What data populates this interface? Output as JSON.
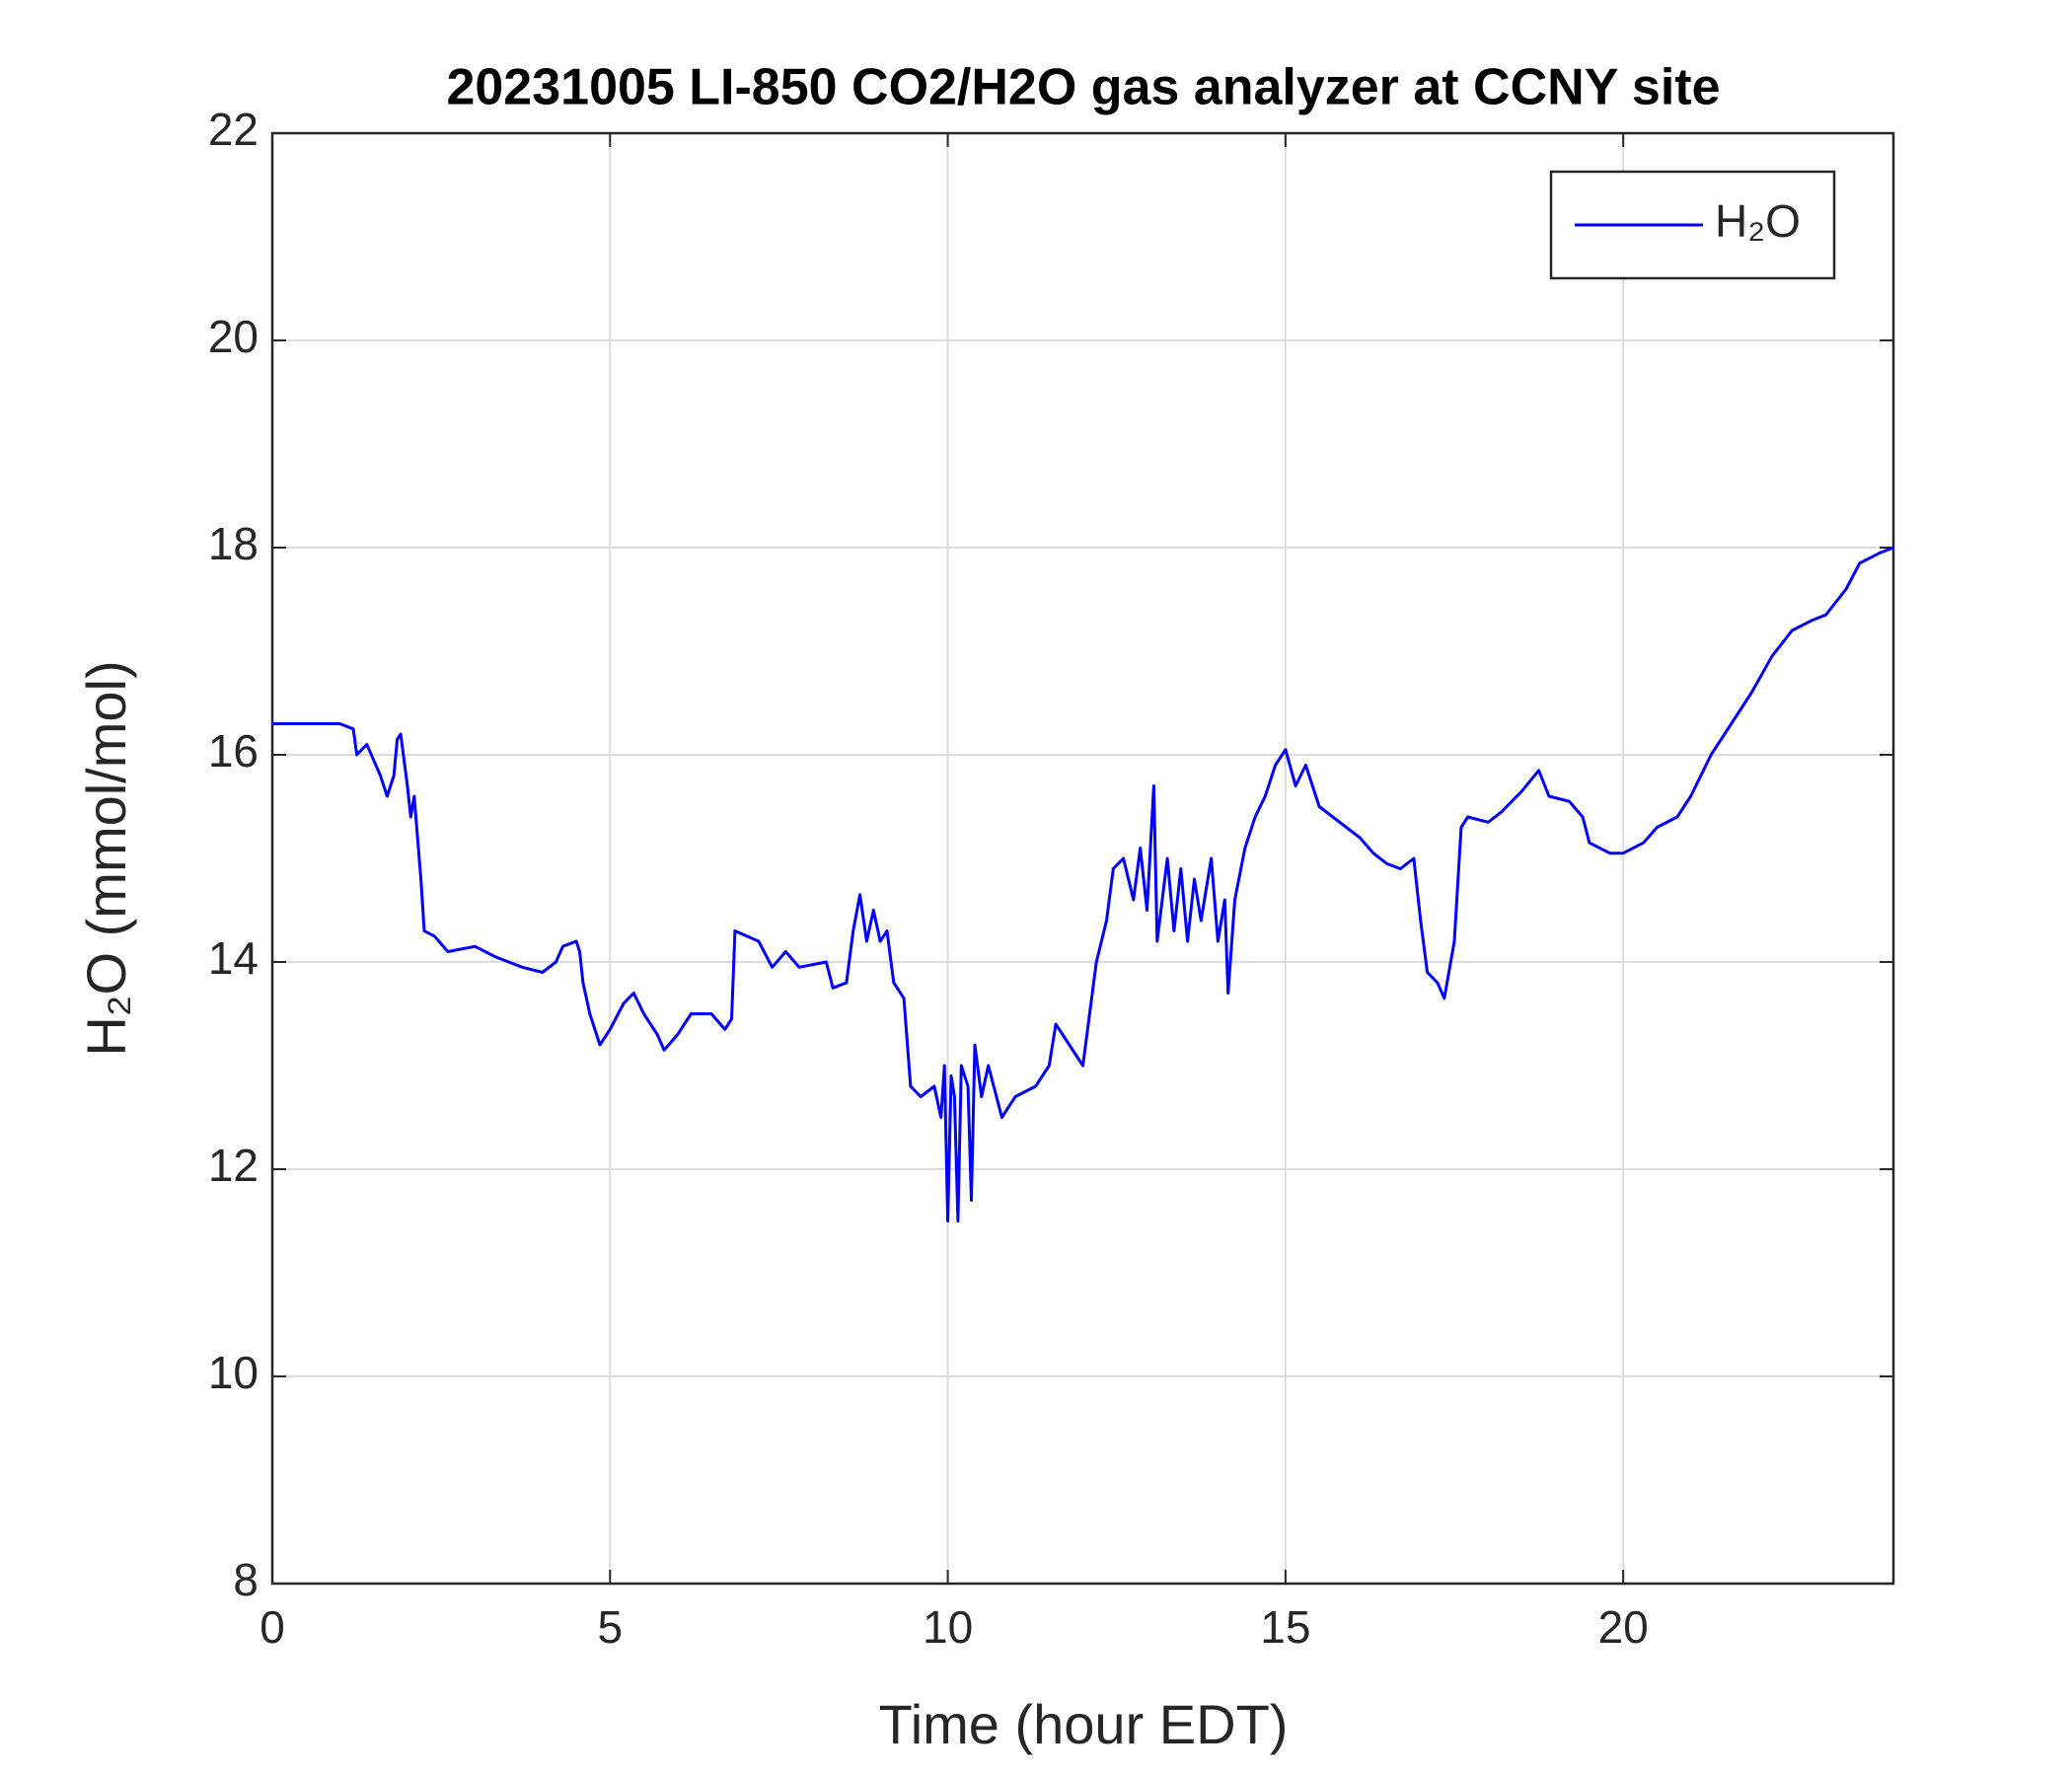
{
  "chart_data": {
    "type": "line",
    "title": "20231005 LI-850 CO2/H2O gas analyzer at CCNY site",
    "xlabel": "Time (hour EDT)",
    "ylabel": "H₂O (mmol/mol)",
    "xlim": [
      0,
      24
    ],
    "xticks": [
      0,
      5,
      10,
      15,
      20
    ],
    "ylim": [
      8,
      22
    ],
    "yticks": [
      8,
      10,
      12,
      14,
      16,
      18,
      20,
      22
    ],
    "grid": true,
    "legend": "northeast",
    "x": [
      0,
      0.5,
      1,
      1.2,
      1.25,
      1.4,
      1.6,
      1.7,
      1.8,
      1.85,
      1.9,
      2.0,
      2.05,
      2.1,
      2.2,
      2.25,
      2.4,
      2.6,
      3.0,
      3.3,
      3.5,
      3.7,
      4.0,
      4.2,
      4.3,
      4.5,
      4.55,
      4.6,
      4.7,
      4.85,
      5.0,
      5.2,
      5.35,
      5.5,
      5.7,
      5.8,
      6.0,
      6.2,
      6.5,
      6.7,
      6.8,
      6.85,
      7.2,
      7.4,
      7.6,
      7.8,
      8.2,
      8.3,
      8.5,
      8.6,
      8.7,
      8.8,
      8.9,
      9.0,
      9.1,
      9.2,
      9.35,
      9.45,
      9.6,
      9.8,
      9.9,
      9.95,
      10.0,
      10.05,
      10.1,
      10.15,
      10.2,
      10.3,
      10.35,
      10.4,
      10.5,
      10.6,
      10.8,
      11.0,
      11.3,
      11.5,
      11.6,
      11.8,
      12.0,
      12.2,
      12.35,
      12.45,
      12.6,
      12.75,
      12.85,
      12.95,
      13.05,
      13.1,
      13.25,
      13.35,
      13.45,
      13.55,
      13.65,
      13.75,
      13.9,
      14.0,
      14.1,
      14.15,
      14.25,
      14.4,
      14.55,
      14.7,
      14.85,
      15.0,
      15.15,
      15.3,
      15.5,
      15.7,
      15.9,
      16.1,
      16.3,
      16.5,
      16.7,
      16.9,
      17.0,
      17.1,
      17.25,
      17.35,
      17.5,
      17.6,
      17.7,
      18.0,
      18.2,
      18.5,
      18.75,
      18.9,
      19.2,
      19.4,
      19.5,
      19.8,
      20.0,
      20.3,
      20.5,
      20.8,
      21.0,
      21.3,
      21.6,
      21.9,
      22.2,
      22.5,
      22.8,
      23.0,
      23.3,
      23.5,
      23.8,
      24.0
    ],
    "series": [
      {
        "name": "H₂O",
        "color": "#0000ff",
        "values": [
          16.3,
          16.3,
          16.3,
          16.25,
          16.0,
          16.1,
          15.8,
          15.6,
          15.8,
          16.15,
          16.2,
          15.7,
          15.4,
          15.6,
          14.8,
          14.3,
          14.25,
          14.1,
          14.15,
          14.05,
          14.0,
          13.95,
          13.9,
          14.0,
          14.15,
          14.2,
          14.1,
          13.8,
          13.5,
          13.2,
          13.35,
          13.6,
          13.7,
          13.5,
          13.3,
          13.15,
          13.3,
          13.5,
          13.5,
          13.35,
          13.45,
          14.3,
          14.2,
          13.95,
          14.1,
          13.95,
          14.0,
          13.75,
          13.8,
          14.3,
          14.65,
          14.2,
          14.5,
          14.2,
          14.3,
          13.8,
          13.65,
          12.8,
          12.7,
          12.8,
          12.5,
          13.0,
          11.5,
          12.9,
          12.7,
          11.5,
          13.0,
          12.8,
          11.7,
          13.2,
          12.7,
          13.0,
          12.5,
          12.7,
          12.8,
          13.0,
          13.4,
          13.2,
          13.0,
          14.0,
          14.4,
          14.9,
          15.0,
          14.6,
          15.1,
          14.5,
          15.7,
          14.2,
          15.0,
          14.3,
          14.9,
          14.2,
          14.8,
          14.4,
          15.0,
          14.2,
          14.6,
          13.7,
          14.6,
          15.1,
          15.4,
          15.6,
          15.9,
          16.05,
          15.7,
          15.9,
          15.5,
          15.4,
          15.3,
          15.2,
          15.05,
          14.95,
          14.9,
          15.0,
          14.4,
          13.9,
          13.8,
          13.65,
          14.2,
          15.3,
          15.4,
          15.35,
          15.45,
          15.65,
          15.85,
          15.6,
          15.55,
          15.4,
          15.15,
          15.05,
          15.05,
          15.15,
          15.3,
          15.4,
          15.6,
          16.0,
          16.3,
          16.6,
          16.95,
          17.2,
          17.3,
          17.35,
          17.6,
          17.85,
          17.95,
          18.0
        ]
      }
    ]
  }
}
